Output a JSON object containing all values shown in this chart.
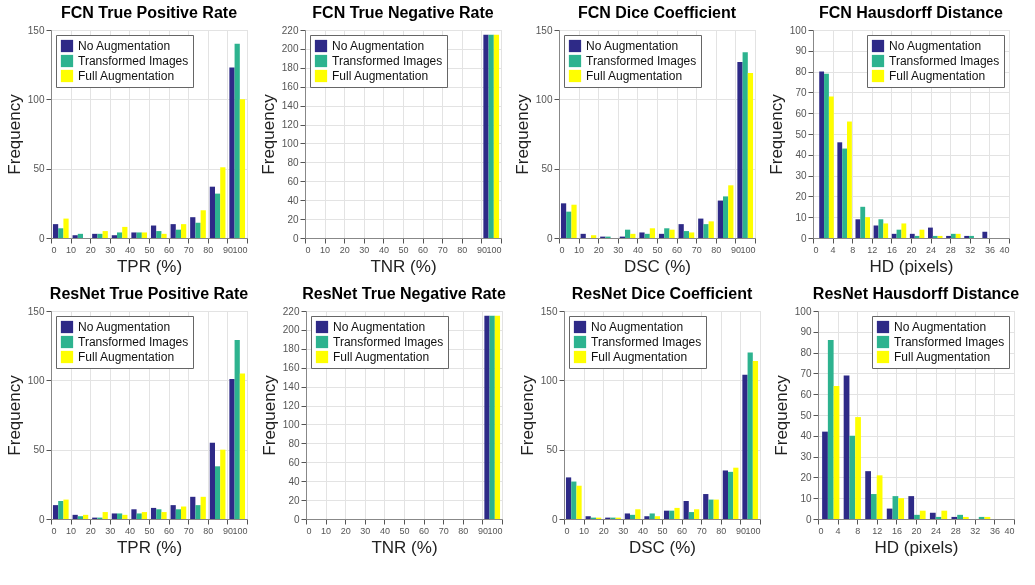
{
  "chart_data": [
    {
      "type": "histogram",
      "title": "FCN True Positive Rate",
      "xlabel": "TPR (%)",
      "ylabel": "Frequency",
      "bins": [
        0,
        10,
        20,
        30,
        40,
        50,
        60,
        70,
        80,
        90,
        100
      ],
      "xlim": [
        0,
        100
      ],
      "xticks": [
        0,
        10,
        20,
        30,
        40,
        50,
        60,
        70,
        80,
        90,
        100
      ],
      "ylim": [
        0,
        150
      ],
      "yticks": [
        0,
        50,
        100,
        150
      ],
      "grid": true,
      "legend": "top left",
      "series": [
        {
          "name": "No Augmentation",
          "color": "#2e2a87",
          "values": [
            10,
            2,
            3,
            2,
            4,
            9,
            10,
            15,
            37,
            123
          ]
        },
        {
          "name": "Transformed Images",
          "color": "#2db38f",
          "values": [
            7,
            3,
            3,
            4,
            4,
            5,
            6,
            11,
            32,
            140
          ]
        },
        {
          "name": "Full Augmentation",
          "color": "#ffff00",
          "values": [
            14,
            0,
            5,
            8,
            4,
            3,
            10,
            20,
            51,
            100
          ]
        }
      ]
    },
    {
      "type": "histogram",
      "title": "FCN True Negative Rate",
      "xlabel": "TNR (%)",
      "ylabel": "Frequency",
      "bins": [
        0,
        10,
        20,
        30,
        40,
        50,
        60,
        70,
        80,
        90,
        100
      ],
      "xlim": [
        0,
        100
      ],
      "xticks": [
        0,
        10,
        20,
        30,
        40,
        50,
        60,
        70,
        80,
        90,
        100
      ],
      "ylim": [
        0,
        220
      ],
      "yticks": [
        0,
        20,
        40,
        60,
        80,
        100,
        120,
        140,
        160,
        180,
        200,
        220
      ],
      "grid": true,
      "legend": "top left",
      "series": [
        {
          "name": "No Augmentation",
          "color": "#2e2a87",
          "values": [
            0,
            0,
            0,
            0,
            0,
            0,
            0,
            0,
            0,
            215
          ]
        },
        {
          "name": "Transformed Images",
          "color": "#2db38f",
          "values": [
            0,
            0,
            0,
            0,
            0,
            0,
            0,
            0,
            0,
            215
          ]
        },
        {
          "name": "Full Augmentation",
          "color": "#ffff00",
          "values": [
            0,
            0,
            0,
            0,
            0,
            0,
            0,
            0,
            0,
            215
          ]
        }
      ]
    },
    {
      "type": "histogram",
      "title": "FCN Dice Coefficient",
      "xlabel": "DSC (%)",
      "ylabel": "Frequency",
      "bins": [
        0,
        10,
        20,
        30,
        40,
        50,
        60,
        70,
        80,
        90,
        100
      ],
      "xlim": [
        0,
        100
      ],
      "xticks": [
        0,
        10,
        20,
        30,
        40,
        50,
        60,
        70,
        80,
        90,
        100
      ],
      "ylim": [
        0,
        150
      ],
      "yticks": [
        0,
        50,
        100,
        150
      ],
      "grid": true,
      "legend": "top left",
      "series": [
        {
          "name": "No Augmentation",
          "color": "#2e2a87",
          "values": [
            25,
            3,
            1,
            1,
            4,
            3,
            10,
            14,
            27,
            127
          ]
        },
        {
          "name": "Transformed Images",
          "color": "#2db38f",
          "values": [
            19,
            0,
            1,
            6,
            3,
            7,
            5,
            10,
            30,
            134
          ]
        },
        {
          "name": "Full Augmentation",
          "color": "#ffff00",
          "values": [
            24,
            2,
            0,
            3,
            7,
            6,
            4,
            12,
            38,
            119
          ]
        }
      ]
    },
    {
      "type": "histogram",
      "title": "FCN Hausdorff Distance",
      "xlabel": "HD (pixels)",
      "ylabel": "Frequency",
      "bins": [
        0.9,
        4.6,
        8.3,
        12,
        15.7,
        19.4,
        23.1,
        26.8,
        30.5,
        34.2,
        37.9
      ],
      "xlim": [
        0,
        40
      ],
      "xticks": [
        0,
        4,
        8,
        12,
        16,
        20,
        24,
        28,
        32,
        36,
        40
      ],
      "ylim": [
        0,
        100
      ],
      "yticks": [
        0,
        10,
        20,
        30,
        40,
        50,
        60,
        70,
        80,
        90,
        100
      ],
      "grid": true,
      "legend": "top right",
      "series": [
        {
          "name": "No Augmentation",
          "color": "#2e2a87",
          "values": [
            80,
            46,
            9,
            6,
            2,
            2,
            5,
            1,
            1,
            3
          ]
        },
        {
          "name": "Transformed Images",
          "color": "#2db38f",
          "values": [
            79,
            43,
            15,
            9,
            4,
            1,
            1,
            2,
            1,
            0
          ]
        },
        {
          "name": "Full Augmentation",
          "color": "#ffff00",
          "values": [
            68,
            56,
            10,
            7,
            7,
            4,
            1,
            2,
            0,
            0
          ]
        }
      ]
    },
    {
      "type": "histogram",
      "title": "ResNet True Positive Rate",
      "xlabel": "TPR (%)",
      "ylabel": "Frequency",
      "bins": [
        0,
        10,
        20,
        30,
        40,
        50,
        60,
        70,
        80,
        90,
        100
      ],
      "xlim": [
        0,
        100
      ],
      "xticks": [
        0,
        10,
        20,
        30,
        40,
        50,
        60,
        70,
        80,
        90,
        100
      ],
      "ylim": [
        0,
        150
      ],
      "yticks": [
        0,
        50,
        100,
        150
      ],
      "grid": true,
      "legend": "top left",
      "series": [
        {
          "name": "No Augmentation",
          "color": "#2e2a87",
          "values": [
            10,
            3,
            1,
            4,
            7,
            8,
            10,
            16,
            55,
            101
          ]
        },
        {
          "name": "Transformed Images",
          "color": "#2db38f",
          "values": [
            13,
            2,
            1,
            4,
            4,
            7,
            7,
            10,
            38,
            129
          ]
        },
        {
          "name": "Full Augmentation",
          "color": "#ffff00",
          "values": [
            14,
            3,
            5,
            3,
            5,
            5,
            9,
            16,
            50,
            105
          ]
        }
      ]
    },
    {
      "type": "histogram",
      "title": "ResNet True Negative Rate",
      "xlabel": "TNR (%)",
      "ylabel": "Frequency",
      "bins": [
        0,
        10,
        20,
        30,
        40,
        50,
        60,
        70,
        80,
        90,
        100
      ],
      "xlim": [
        0,
        100
      ],
      "xticks": [
        0,
        10,
        20,
        30,
        40,
        50,
        60,
        70,
        80,
        90,
        100
      ],
      "ylim": [
        0,
        220
      ],
      "yticks": [
        0,
        20,
        40,
        60,
        80,
        100,
        120,
        140,
        160,
        180,
        200,
        220
      ],
      "grid": true,
      "legend": "top left",
      "series": [
        {
          "name": "No Augmentation",
          "color": "#2e2a87",
          "values": [
            0,
            0,
            0,
            0,
            0,
            0,
            0,
            0,
            0,
            215
          ]
        },
        {
          "name": "Transformed Images",
          "color": "#2db38f",
          "values": [
            0,
            0,
            0,
            0,
            0,
            0,
            0,
            0,
            0,
            215
          ]
        },
        {
          "name": "Full Augmentation",
          "color": "#ffff00",
          "values": [
            0,
            0,
            0,
            0,
            0,
            0,
            0,
            0,
            0,
            215
          ]
        }
      ]
    },
    {
      "type": "histogram",
      "title": "ResNet Dice Coefficient",
      "xlabel": "DSC (%)",
      "ylabel": "Frequency",
      "bins": [
        0,
        10,
        20,
        30,
        40,
        50,
        60,
        70,
        80,
        90,
        100
      ],
      "xlim": [
        0,
        100
      ],
      "xticks": [
        0,
        10,
        20,
        30,
        40,
        50,
        60,
        70,
        80,
        90,
        100
      ],
      "ylim": [
        0,
        150
      ],
      "yticks": [
        0,
        50,
        100,
        150
      ],
      "grid": true,
      "legend": "top left",
      "series": [
        {
          "name": "No Augmentation",
          "color": "#2e2a87",
          "values": [
            30,
            2,
            1,
            4,
            2,
            6,
            13,
            18,
            35,
            104
          ]
        },
        {
          "name": "Transformed Images",
          "color": "#2db38f",
          "values": [
            27,
            1,
            1,
            3,
            4,
            6,
            5,
            14,
            34,
            120
          ]
        },
        {
          "name": "Full Augmentation",
          "color": "#ffff00",
          "values": [
            24,
            1,
            1,
            7,
            2,
            8,
            7,
            14,
            37,
            114
          ]
        }
      ]
    },
    {
      "type": "histogram",
      "title": "ResNet Hausdorff Distance",
      "xlabel": "HD (pixels)",
      "ylabel": "Frequency",
      "bins": [
        0.4,
        4.8,
        9.2,
        13.6,
        18,
        22.4,
        26.8,
        31.2,
        35.6,
        40
      ],
      "xlim": [
        0,
        40
      ],
      "xticks": [
        0,
        4,
        8,
        12,
        16,
        20,
        24,
        28,
        32,
        36,
        40
      ],
      "ylim": [
        0,
        100
      ],
      "yticks": [
        0,
        10,
        20,
        30,
        40,
        50,
        60,
        70,
        80,
        90,
        100
      ],
      "grid": true,
      "legend": "top right",
      "series": [
        {
          "name": "No Augmentation",
          "color": "#2e2a87",
          "values": [
            42,
            69,
            23,
            5,
            11,
            3,
            1,
            0,
            0
          ]
        },
        {
          "name": "Transformed Images",
          "color": "#2db38f",
          "values": [
            86,
            40,
            12,
            11,
            2,
            1,
            2,
            1,
            0
          ]
        },
        {
          "name": "Full Augmentation",
          "color": "#ffff00",
          "values": [
            64,
            49,
            21,
            10,
            4,
            4,
            1,
            1,
            0
          ]
        }
      ]
    }
  ]
}
